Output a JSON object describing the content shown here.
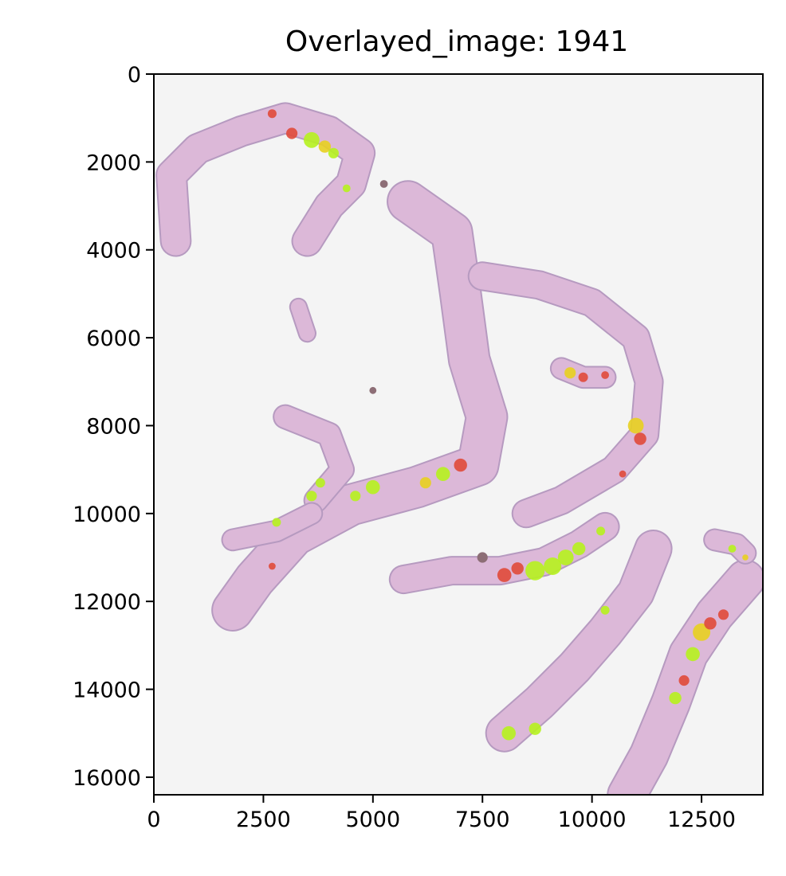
{
  "figure": {
    "title": "Overlayed_image: 1941",
    "xlim": [
      0,
      13900
    ],
    "ylim": [
      16400,
      0
    ],
    "xticks": [
      0,
      2500,
      5000,
      7500,
      10000,
      12500
    ],
    "yticks": [
      0,
      2000,
      4000,
      6000,
      8000,
      10000,
      12000,
      14000,
      16000
    ],
    "background_color": "#f4f4f4",
    "tissue_color": "#dcb8d8",
    "tissue_edge_color": "#b69ac0",
    "heat_colors": [
      "#b6f21e",
      "#e8d020",
      "#e04a3a"
    ]
  },
  "tissue_strips": [
    {
      "name": "top-arc",
      "points": [
        [
          500,
          3800
        ],
        [
          400,
          2300
        ],
        [
          1000,
          1700
        ],
        [
          2000,
          1300
        ],
        [
          3000,
          1000
        ],
        [
          4000,
          1300
        ],
        [
          4700,
          1800
        ],
        [
          4500,
          2500
        ],
        [
          4000,
          3000
        ],
        [
          3500,
          3800
        ]
      ],
      "width": 650
    },
    {
      "name": "center-arc",
      "points": [
        [
          5800,
          2900
        ],
        [
          6800,
          3600
        ],
        [
          7000,
          5000
        ],
        [
          7200,
          6500
        ],
        [
          7600,
          7800
        ],
        [
          7400,
          8900
        ],
        [
          6000,
          9400
        ],
        [
          4500,
          9800
        ],
        [
          3200,
          10500
        ],
        [
          2300,
          11500
        ],
        [
          1800,
          12200
        ]
      ],
      "width": 900
    },
    {
      "name": "left-branch",
      "points": [
        [
          3000,
          7800
        ],
        [
          4000,
          8200
        ],
        [
          4300,
          9000
        ],
        [
          3700,
          9700
        ]
      ],
      "width": 500
    },
    {
      "name": "left-bottom-branch",
      "points": [
        [
          1800,
          10600
        ],
        [
          2800,
          10400
        ],
        [
          3600,
          10000
        ]
      ],
      "width": 450
    },
    {
      "name": "right-arc",
      "points": [
        [
          7500,
          4600
        ],
        [
          8800,
          4800
        ],
        [
          10000,
          5200
        ],
        [
          11000,
          6000
        ],
        [
          11300,
          7000
        ],
        [
          11200,
          8200
        ],
        [
          10500,
          9000
        ],
        [
          9300,
          9700
        ],
        [
          8500,
          10000
        ]
      ],
      "width": 600
    },
    {
      "name": "right-small-piece",
      "points": [
        [
          9300,
          6700
        ],
        [
          9800,
          6900
        ],
        [
          10300,
          6900
        ]
      ],
      "width": 450
    },
    {
      "name": "center-lower-strip",
      "points": [
        [
          5700,
          11500
        ],
        [
          6800,
          11300
        ],
        [
          7900,
          11300
        ],
        [
          8900,
          11100
        ],
        [
          9700,
          10700
        ],
        [
          10300,
          10300
        ]
      ],
      "width": 600
    },
    {
      "name": "lower-right-strip",
      "points": [
        [
          8000,
          15000
        ],
        [
          8800,
          14300
        ],
        [
          9600,
          13500
        ],
        [
          10300,
          12700
        ],
        [
          11000,
          11800
        ],
        [
          11400,
          10800
        ]
      ],
      "width": 800
    },
    {
      "name": "far-right-strip",
      "points": [
        [
          10800,
          16400
        ],
        [
          11300,
          15500
        ],
        [
          11800,
          14300
        ],
        [
          12200,
          13200
        ],
        [
          12800,
          12300
        ],
        [
          13500,
          11500
        ]
      ],
      "width": 850
    },
    {
      "name": "far-right-top-piece",
      "points": [
        [
          12800,
          10600
        ],
        [
          13300,
          10700
        ],
        [
          13500,
          10900
        ]
      ],
      "width": 450
    },
    {
      "name": "small-piece-a",
      "points": [
        [
          3300,
          5300
        ],
        [
          3500,
          5900
        ]
      ],
      "width": 350
    }
  ],
  "heat_spots": [
    {
      "x": 3150,
      "y": 1350,
      "r": 130,
      "level": 2
    },
    {
      "x": 3600,
      "y": 1500,
      "r": 180,
      "level": 0
    },
    {
      "x": 3900,
      "y": 1650,
      "r": 140,
      "level": 1
    },
    {
      "x": 2700,
      "y": 900,
      "r": 100,
      "level": 2
    },
    {
      "x": 4100,
      "y": 1800,
      "r": 120,
      "level": 0
    },
    {
      "x": 4400,
      "y": 2600,
      "r": 90,
      "level": 0
    },
    {
      "x": 9500,
      "y": 6800,
      "r": 130,
      "level": 1
    },
    {
      "x": 9800,
      "y": 6900,
      "r": 110,
      "level": 2
    },
    {
      "x": 10300,
      "y": 6850,
      "r": 90,
      "level": 2
    },
    {
      "x": 11000,
      "y": 8000,
      "r": 180,
      "level": 1
    },
    {
      "x": 11100,
      "y": 8300,
      "r": 140,
      "level": 2
    },
    {
      "x": 10700,
      "y": 9100,
      "r": 80,
      "level": 2
    },
    {
      "x": 7000,
      "y": 8900,
      "r": 150,
      "level": 2
    },
    {
      "x": 6600,
      "y": 9100,
      "r": 160,
      "level": 0
    },
    {
      "x": 6200,
      "y": 9300,
      "r": 130,
      "level": 1
    },
    {
      "x": 5000,
      "y": 9400,
      "r": 160,
      "level": 0
    },
    {
      "x": 4600,
      "y": 9600,
      "r": 120,
      "level": 0
    },
    {
      "x": 3800,
      "y": 9300,
      "r": 110,
      "level": 0
    },
    {
      "x": 3600,
      "y": 9600,
      "r": 120,
      "level": 0
    },
    {
      "x": 2800,
      "y": 10200,
      "r": 100,
      "level": 0
    },
    {
      "x": 2700,
      "y": 11200,
      "r": 80,
      "level": 2
    },
    {
      "x": 8000,
      "y": 11400,
      "r": 160,
      "level": 2
    },
    {
      "x": 8300,
      "y": 11250,
      "r": 140,
      "level": 2
    },
    {
      "x": 8700,
      "y": 11300,
      "r": 220,
      "level": 0
    },
    {
      "x": 9100,
      "y": 11200,
      "r": 200,
      "level": 0
    },
    {
      "x": 9400,
      "y": 11000,
      "r": 180,
      "level": 0
    },
    {
      "x": 9700,
      "y": 10800,
      "r": 150,
      "level": 0
    },
    {
      "x": 10200,
      "y": 10400,
      "r": 100,
      "level": 0
    },
    {
      "x": 8100,
      "y": 15000,
      "r": 160,
      "level": 0
    },
    {
      "x": 8700,
      "y": 14900,
      "r": 140,
      "level": 0
    },
    {
      "x": 10300,
      "y": 12200,
      "r": 100,
      "level": 0
    },
    {
      "x": 12500,
      "y": 12700,
      "r": 200,
      "level": 1
    },
    {
      "x": 12700,
      "y": 12500,
      "r": 140,
      "level": 2
    },
    {
      "x": 12300,
      "y": 13200,
      "r": 160,
      "level": 0
    },
    {
      "x": 12100,
      "y": 13800,
      "r": 120,
      "level": 2
    },
    {
      "x": 11900,
      "y": 14200,
      "r": 140,
      "level": 0
    },
    {
      "x": 13000,
      "y": 12300,
      "r": 120,
      "level": 2
    },
    {
      "x": 13200,
      "y": 10800,
      "r": 90,
      "level": 0
    },
    {
      "x": 13500,
      "y": 11000,
      "r": 70,
      "level": 1
    }
  ],
  "dark_specks": [
    {
      "x": 7500,
      "y": 11000,
      "r": 120
    },
    {
      "x": 5000,
      "y": 7200,
      "r": 80
    },
    {
      "x": 5250,
      "y": 2500,
      "r": 90
    }
  ]
}
